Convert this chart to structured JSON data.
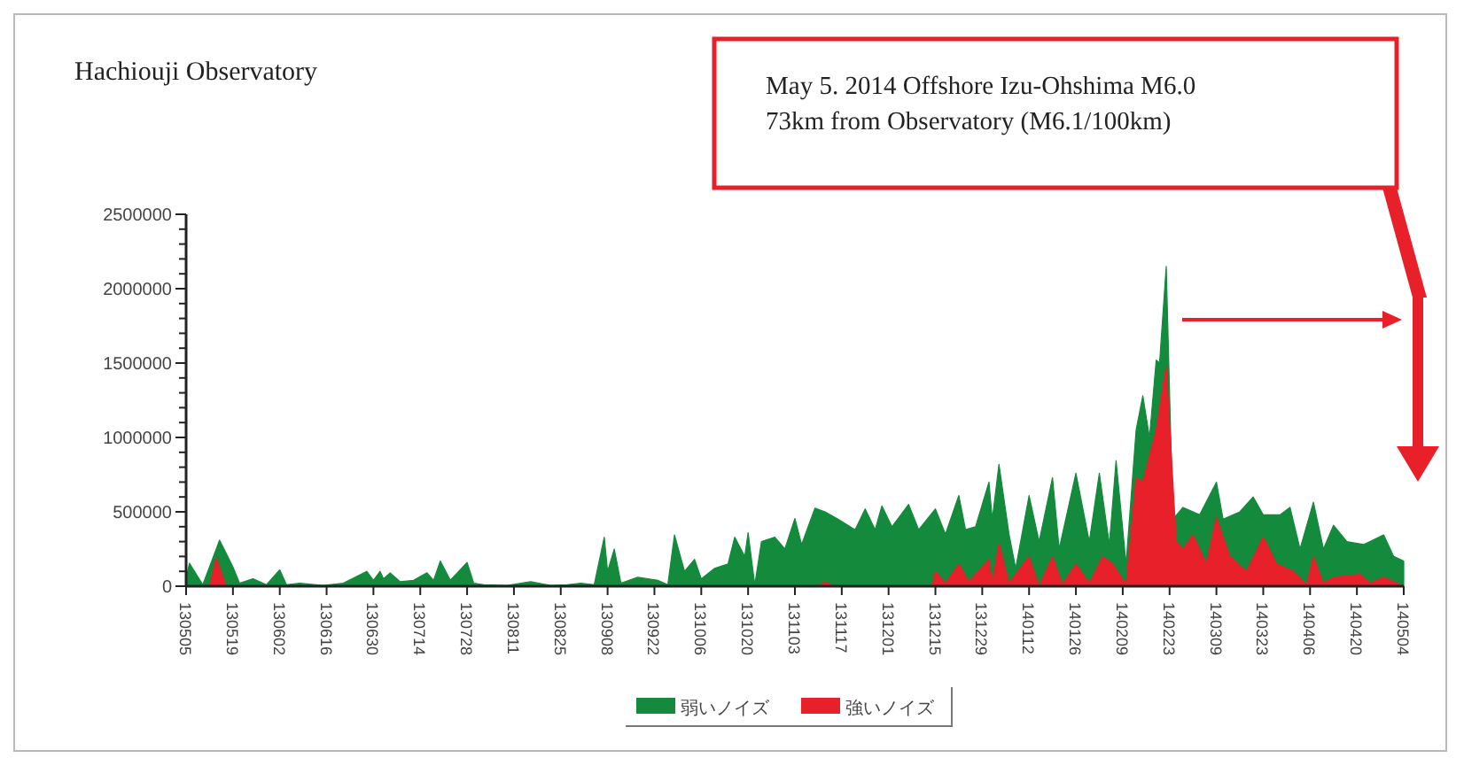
{
  "chart_data": {
    "type": "area",
    "title": "Hachiouji Observatory",
    "annotations": [
      "May 5. 2014 Offshore Izu-Ohshima  M6.0",
      "73km from Observatory (M6.1/100km)"
    ],
    "xlim": [
      "2013-05-05",
      "2014-05-04"
    ],
    "xticks": [
      {
        "value": "2013-05-05",
        "label": "130505"
      },
      {
        "value": "2013-05-19",
        "label": "130519"
      },
      {
        "value": "2013-06-02",
        "label": "130602"
      },
      {
        "value": "2013-06-16",
        "label": "130616"
      },
      {
        "value": "2013-06-30",
        "label": "130630"
      },
      {
        "value": "2013-07-14",
        "label": "130714"
      },
      {
        "value": "2013-07-28",
        "label": "130728"
      },
      {
        "value": "2013-08-11",
        "label": "130811"
      },
      {
        "value": "2013-08-25",
        "label": "130825"
      },
      {
        "value": "2013-09-08",
        "label": "130908"
      },
      {
        "value": "2013-09-22",
        "label": "130922"
      },
      {
        "value": "2013-10-06",
        "label": "131006"
      },
      {
        "value": "2013-10-20",
        "label": "131020"
      },
      {
        "value": "2013-11-03",
        "label": "131103"
      },
      {
        "value": "2013-11-17",
        "label": "131117"
      },
      {
        "value": "2013-12-01",
        "label": "131201"
      },
      {
        "value": "2013-12-15",
        "label": "131215"
      },
      {
        "value": "2013-12-29",
        "label": "131229"
      },
      {
        "value": "2014-01-12",
        "label": "140112"
      },
      {
        "value": "2014-01-26",
        "label": "140126"
      },
      {
        "value": "2014-02-09",
        "label": "140209"
      },
      {
        "value": "2014-02-23",
        "label": "140223"
      },
      {
        "value": "2014-03-09",
        "label": "140309"
      },
      {
        "value": "2014-03-23",
        "label": "140323"
      },
      {
        "value": "2014-04-06",
        "label": "140406"
      },
      {
        "value": "2014-04-20",
        "label": "140420"
      },
      {
        "value": "2014-05-04",
        "label": "140504"
      }
    ],
    "ylim": [
      0,
      2500000
    ],
    "yticks": [
      0,
      {
        "value": 100000,
        "label": null
      },
      {
        "value": 200000,
        "label": null
      },
      {
        "value": 300000,
        "label": null
      },
      {
        "value": 400000,
        "label": null
      },
      500000,
      {
        "value": 600000,
        "label": null
      },
      {
        "value": 700000,
        "label": null
      },
      {
        "value": 800000,
        "label": null
      },
      {
        "value": 900000,
        "label": null
      },
      1000000,
      {
        "value": 1100000,
        "label": null
      },
      {
        "value": 1200000,
        "label": null
      },
      {
        "value": 1300000,
        "label": null
      },
      {
        "value": 1400000,
        "label": null
      },
      1500000,
      {
        "value": 1600000,
        "label": null
      },
      {
        "value": 1700000,
        "label": null
      },
      {
        "value": 1800000,
        "label": null
      },
      {
        "value": 1900000,
        "label": null
      },
      2000000,
      {
        "value": 2100000,
        "label": null
      },
      {
        "value": 2200000,
        "label": null
      },
      {
        "value": 2300000,
        "label": null
      },
      {
        "value": 2400000,
        "label": null
      },
      2500000
    ],
    "legend": "bottom",
    "series": [
      {
        "name": "弱いノイズ",
        "color": "#138a3c",
        "x": [
          "2013-05-05",
          "2013-05-06",
          "2013-05-10",
          "2013-05-15",
          "2013-05-19",
          "2013-05-21",
          "2013-05-25",
          "2013-05-29",
          "2013-06-02",
          "2013-06-04",
          "2013-06-08",
          "2013-06-15",
          "2013-06-21",
          "2013-06-28",
          "2013-06-30",
          "2013-07-02",
          "2013-07-03",
          "2013-07-05",
          "2013-07-08",
          "2013-07-12",
          "2013-07-16",
          "2013-07-18",
          "2013-07-20",
          "2013-07-23",
          "2013-07-28",
          "2013-07-30",
          "2013-08-02",
          "2013-08-09",
          "2013-08-16",
          "2013-08-22",
          "2013-08-27",
          "2013-08-31",
          "2013-09-04",
          "2013-09-07",
          "2013-09-08",
          "2013-09-10",
          "2013-09-12",
          "2013-09-17",
          "2013-09-23",
          "2013-09-26",
          "2013-09-28",
          "2013-10-01",
          "2013-10-04",
          "2013-10-06",
          "2013-10-10",
          "2013-10-14",
          "2013-10-16",
          "2013-10-19",
          "2013-10-20",
          "2013-10-22",
          "2013-10-24",
          "2013-10-28",
          "2013-10-31",
          "2013-11-03",
          "2013-11-05",
          "2013-11-09",
          "2013-11-12",
          "2013-11-16",
          "2013-11-21",
          "2013-11-24",
          "2013-11-27",
          "2013-11-29",
          "2013-12-02",
          "2013-12-07",
          "2013-12-10",
          "2013-12-15",
          "2013-12-18",
          "2013-12-22",
          "2013-12-24",
          "2013-12-27",
          "2013-12-31",
          "2014-01-01",
          "2014-01-03",
          "2014-01-06",
          "2014-01-08",
          "2014-01-12",
          "2014-01-15",
          "2014-01-19",
          "2014-01-21",
          "2014-01-26",
          "2014-01-30",
          "2014-02-02",
          "2014-02-05",
          "2014-02-07",
          "2014-02-10",
          "2014-02-13",
          "2014-02-15",
          "2014-02-17",
          "2014-02-19",
          "2014-02-20",
          "2014-02-22",
          "2014-02-24",
          "2014-02-27",
          "2014-03-04",
          "2014-03-09",
          "2014-03-11",
          "2014-03-16",
          "2014-03-20",
          "2014-03-23",
          "2014-03-28",
          "2014-03-31",
          "2014-04-03",
          "2014-04-07",
          "2014-04-10",
          "2014-04-13",
          "2014-04-17",
          "2014-04-22",
          "2014-04-28",
          "2014-05-01",
          "2014-05-04"
        ],
        "values": [
          50000,
          155000,
          10000,
          310000,
          130000,
          20000,
          50000,
          10000,
          110000,
          10000,
          20000,
          5000,
          20000,
          100000,
          40000,
          100000,
          50000,
          90000,
          30000,
          40000,
          90000,
          40000,
          170000,
          40000,
          160000,
          20000,
          10000,
          5000,
          30000,
          5000,
          10000,
          20000,
          10000,
          330000,
          100000,
          250000,
          20000,
          60000,
          40000,
          10000,
          345000,
          100000,
          180000,
          50000,
          120000,
          150000,
          330000,
          200000,
          360000,
          10000,
          300000,
          330000,
          250000,
          455000,
          280000,
          525000,
          500000,
          450000,
          380000,
          520000,
          380000,
          540000,
          400000,
          550000,
          380000,
          520000,
          350000,
          610000,
          380000,
          400000,
          700000,
          450000,
          820000,
          350000,
          120000,
          610000,
          300000,
          730000,
          250000,
          760000,
          300000,
          760000,
          280000,
          845000,
          150000,
          1050000,
          1280000,
          1000000,
          1520000,
          1500000,
          2150000,
          450000,
          530000,
          480000,
          700000,
          450000,
          500000,
          600000,
          480000,
          480000,
          530000,
          250000,
          565000,
          250000,
          410000,
          300000,
          280000,
          345000,
          200000,
          170000
        ]
      },
      {
        "name": "強いノイズ",
        "color": "#e8202a",
        "x": [
          "2013-05-05",
          "2013-05-12",
          "2013-05-14",
          "2013-05-17",
          "2013-11-10",
          "2013-11-12",
          "2013-11-15",
          "2013-12-14",
          "2013-12-15",
          "2013-12-18",
          "2013-12-22",
          "2013-12-25",
          "2013-12-31",
          "2014-01-01",
          "2014-01-03",
          "2014-01-06",
          "2014-01-12",
          "2014-01-15",
          "2014-01-19",
          "2014-01-22",
          "2014-01-26",
          "2014-01-30",
          "2014-02-03",
          "2014-02-06",
          "2014-02-10",
          "2014-02-13",
          "2014-02-15",
          "2014-02-19",
          "2014-02-22",
          "2014-02-25",
          "2014-02-27",
          "2014-03-02",
          "2014-03-06",
          "2014-03-09",
          "2014-03-13",
          "2014-03-18",
          "2014-03-23",
          "2014-03-27",
          "2014-04-01",
          "2014-04-05",
          "2014-04-07",
          "2014-04-10",
          "2014-04-13",
          "2014-04-21",
          "2014-04-24",
          "2014-04-28",
          "2014-05-03",
          "2014-05-04"
        ],
        "values": [
          0,
          0,
          190000,
          0,
          0,
          30000,
          0,
          0,
          100000,
          20000,
          150000,
          30000,
          180000,
          20000,
          290000,
          20000,
          200000,
          0,
          200000,
          10000,
          150000,
          20000,
          200000,
          150000,
          10000,
          730000,
          700000,
          1050000,
          1480000,
          300000,
          250000,
          345000,
          150000,
          465000,
          200000,
          100000,
          330000,
          150000,
          100000,
          10000,
          200000,
          20000,
          60000,
          80000,
          20000,
          60000,
          10000,
          0
        ]
      }
    ]
  }
}
